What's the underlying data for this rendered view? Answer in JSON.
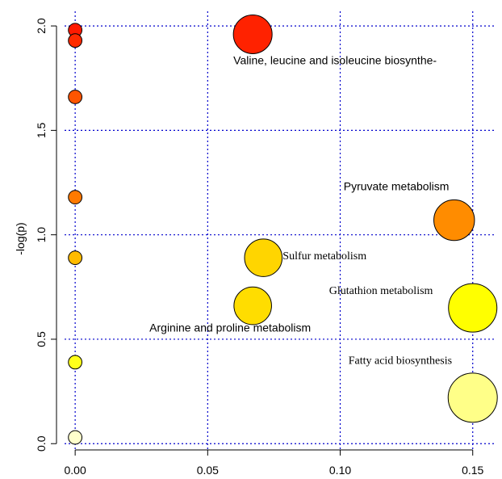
{
  "chart_data": {
    "type": "scatter",
    "title": "",
    "xlabel": "",
    "ylabel": "-log(p)",
    "xlim": [
      -0.004,
      0.158
    ],
    "ylim": [
      -0.03,
      2.07
    ],
    "xticks": [
      0.0,
      0.05,
      0.1,
      0.15
    ],
    "xtick_labels": [
      "0.00",
      "0.05",
      "0.10",
      "0.15"
    ],
    "yticks": [
      0.0,
      0.5,
      1.0,
      1.5,
      2.0
    ],
    "ytick_labels": [
      "0.0",
      "0.5",
      "1.0",
      "1.5",
      "2.0"
    ],
    "grid": true,
    "grid_style": "dotted",
    "grid_color": "#0000cc",
    "points": [
      {
        "x": 0.0,
        "y": 1.98,
        "size": 0.35,
        "color": "#ff1a00",
        "label": ""
      },
      {
        "x": 0.0,
        "y": 1.93,
        "size": 0.35,
        "color": "#ff2a00",
        "label": ""
      },
      {
        "x": 0.0,
        "y": 1.66,
        "size": 0.35,
        "color": "#ff5500",
        "label": ""
      },
      {
        "x": 0.0,
        "y": 1.18,
        "size": 0.35,
        "color": "#ff7a00",
        "label": ""
      },
      {
        "x": 0.0,
        "y": 0.89,
        "size": 0.35,
        "color": "#ffbb00",
        "label": ""
      },
      {
        "x": 0.0,
        "y": 0.39,
        "size": 0.35,
        "color": "#ffff1a",
        "label": ""
      },
      {
        "x": 0.0,
        "y": 0.03,
        "size": 0.35,
        "color": "#ffffcc",
        "label": ""
      },
      {
        "x": 0.067,
        "y": 1.96,
        "size": 1.0,
        "color": "#ff2200",
        "label": "Valine, leucine and isoleucine biosynthe-",
        "label_font": "sans"
      },
      {
        "x": 0.143,
        "y": 1.07,
        "size": 1.05,
        "color": "#ff8c00",
        "label": "Pyruvate metabolism",
        "label_font": "sans"
      },
      {
        "x": 0.071,
        "y": 0.89,
        "size": 0.97,
        "color": "#ffd500",
        "label": "Sulfur metabolism",
        "label_font": "serif"
      },
      {
        "x": 0.067,
        "y": 0.66,
        "size": 0.97,
        "color": "#ffdd00",
        "label": "Arginine and proline metabolism",
        "label_font": "sans"
      },
      {
        "x": 0.15,
        "y": 0.65,
        "size": 1.25,
        "color": "#ffff00",
        "label": "Glutathion metabolism",
        "label_font": "serif"
      },
      {
        "x": 0.15,
        "y": 0.22,
        "size": 1.27,
        "color": "#ffff88",
        "label": "Fatty acid biosynthesis",
        "label_font": "serif"
      }
    ]
  }
}
